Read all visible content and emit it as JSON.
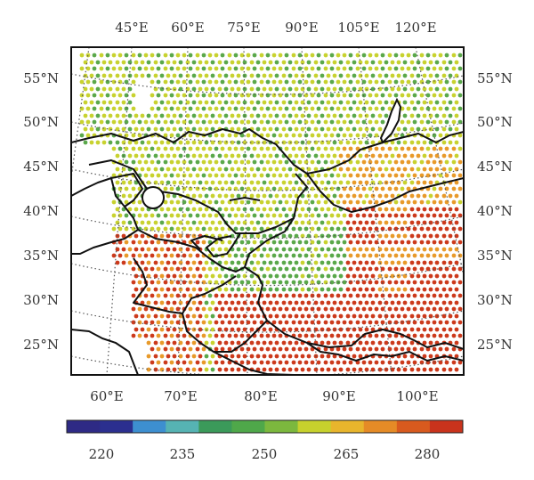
{
  "map": {
    "top_lon_labels": [
      "45°E",
      "60°E",
      "75°E",
      "90°E",
      "105°E",
      "120°E"
    ],
    "bottom_lon_labels": [
      "60°E",
      "70°E",
      "80°E",
      "90°E",
      "100°E"
    ],
    "left_lat_labels": [
      "55°N",
      "50°N",
      "45°N",
      "40°N",
      "35°N",
      "30°N",
      "25°N"
    ],
    "right_lat_labels": [
      "55°N",
      "50°N",
      "45°N",
      "40°N",
      "35°N",
      "30°N",
      "25°N"
    ],
    "colorbar": {
      "colors": [
        "#2e2a85",
        "#2b2f8f",
        "#3d8fd0",
        "#56b3b3",
        "#3b9a5a",
        "#4fa84a",
        "#7cb83e",
        "#c7d12d",
        "#e8b52c",
        "#e58b26",
        "#d85a1e",
        "#c9331c"
      ],
      "tick_labels": [
        "220",
        "235",
        "250",
        "265",
        "280"
      ]
    },
    "legend_colors": {
      "green": "#5aa84a",
      "yellow_green": "#c8d22f",
      "orange": "#e89a2a",
      "red": "#cc3a1c"
    }
  }
}
